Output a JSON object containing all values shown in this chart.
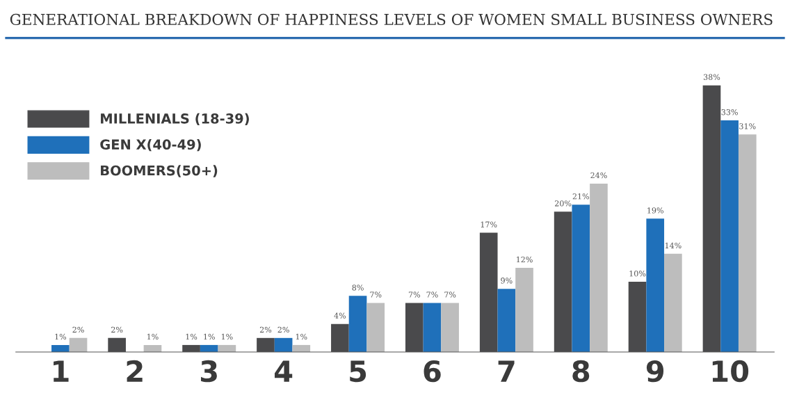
{
  "chart_data": {
    "type": "bar",
    "title": "GENERATIONAL BREAKDOWN OF HAPPINESS LEVELS OF WOMEN SMALL BUSINESS OWNERS",
    "categories": [
      "1",
      "2",
      "3",
      "4",
      "5",
      "6",
      "7",
      "8",
      "9",
      "10"
    ],
    "series": [
      {
        "name": "MILLENIALS (18-39)",
        "color": "#4a4a4c",
        "values": [
          null,
          2,
          1,
          2,
          4,
          7,
          17,
          20,
          10,
          38
        ],
        "value_labels": [
          null,
          "2%",
          "1%",
          "2%",
          "4%",
          "7%",
          "17%",
          "20%",
          "10%",
          "38%"
        ]
      },
      {
        "name": "GEN X(40-49)",
        "color": "#1f70ba",
        "values": [
          1,
          null,
          1,
          2,
          8,
          7,
          9,
          21,
          19,
          33
        ],
        "value_labels": [
          "1%",
          null,
          "1%",
          "2%",
          "8%",
          "7%",
          "9%",
          "21%",
          "19%",
          "33%"
        ]
      },
      {
        "name": "BOOMERS(50+)",
        "color": "#bdbdbd",
        "values": [
          2,
          1,
          1,
          1,
          7,
          7,
          12,
          24,
          14,
          31
        ],
        "value_labels": [
          "2%",
          "1%",
          "1%",
          "1%",
          "7%",
          "7%",
          "12%",
          "24%",
          "14%",
          "31%"
        ]
      }
    ],
    "legend": "top left",
    "grid": false
  }
}
